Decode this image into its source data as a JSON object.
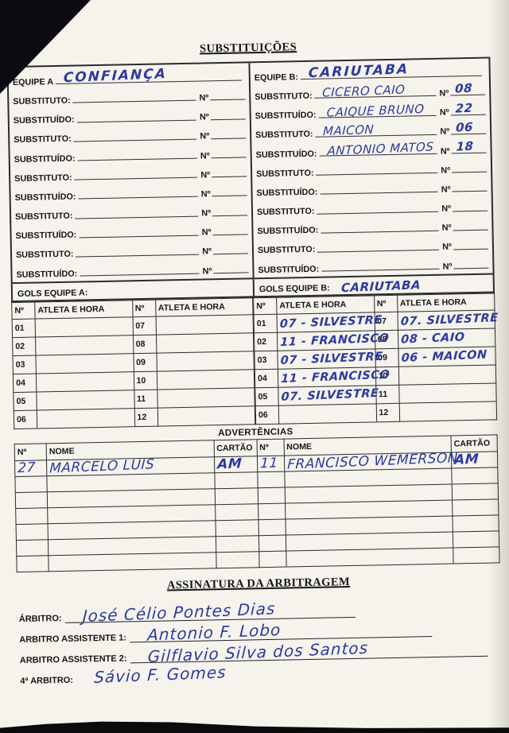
{
  "labels": {
    "num": "Nº",
    "athlete": "ATLETA E HORA",
    "name": "NOME",
    "card": "CARTÃO"
  },
  "sections": {
    "substitutions_title": "SUBSTITUIÇÕES",
    "warnings_title": "ADVERTÊNCIAS",
    "signature_title": "ASSINATURA DA ARBITRAGEM"
  },
  "subs": {
    "team_a": {
      "label": "EQUIPE A",
      "value": "CONFIANÇA"
    },
    "team_b": {
      "label": "EQUIPE B:",
      "value": "CARIUTABA"
    },
    "rows_a": [
      {
        "label": "SUBSTITUTO:",
        "name": "",
        "num": ""
      },
      {
        "label": "SUBSTITUÍDO:",
        "name": "",
        "num": ""
      },
      {
        "label": "SUBSTITUTO:",
        "name": "",
        "num": ""
      },
      {
        "label": "SUBSTITUÍDO:",
        "name": "",
        "num": ""
      },
      {
        "label": "SUBSTITUTO:",
        "name": "",
        "num": ""
      },
      {
        "label": "SUBSTITUÍDO:",
        "name": "",
        "num": ""
      },
      {
        "label": "SUBSTITUTO:",
        "name": "",
        "num": ""
      },
      {
        "label": "SUBSTITUÍDO:",
        "name": "",
        "num": ""
      },
      {
        "label": "SUBSTITUTO:",
        "name": "",
        "num": ""
      },
      {
        "label": "SUBSTITUÍDO:",
        "name": "",
        "num": ""
      }
    ],
    "rows_b": [
      {
        "label": "SUBSTITUTO:",
        "name": "CICERO CAIO",
        "num": "08"
      },
      {
        "label": "SUBSTITUÍDO:",
        "name": "CAIQUE BRUNO",
        "num": "22"
      },
      {
        "label": "SUBSTITUTO:",
        "name": "MAICON",
        "num": "06"
      },
      {
        "label": "SUBSTITUÍDO:",
        "name": "ANTONIO MATOS",
        "num": "18"
      },
      {
        "label": "SUBSTITUTO:",
        "name": "",
        "num": ""
      },
      {
        "label": "SUBSTITUÍDO:",
        "name": "",
        "num": ""
      },
      {
        "label": "SUBSTITUTO:",
        "name": "",
        "num": ""
      },
      {
        "label": "SUBSTITUÍDO:",
        "name": "",
        "num": ""
      },
      {
        "label": "SUBSTITUTO:",
        "name": "",
        "num": ""
      },
      {
        "label": "SUBSTITUÍDO:",
        "name": "",
        "num": ""
      }
    ]
  },
  "goals": {
    "team_a_label": "GOLS EQUIPE A:",
    "team_a_value": "",
    "team_b_label": "GOLS EQUIPE B:",
    "team_b_value": "CARIUTABA",
    "rows_a": [
      {
        "n1": "01",
        "e1": "",
        "n2": "07",
        "e2": ""
      },
      {
        "n1": "02",
        "e1": "",
        "n2": "08",
        "e2": ""
      },
      {
        "n1": "03",
        "e1": "",
        "n2": "09",
        "e2": ""
      },
      {
        "n1": "04",
        "e1": "",
        "n2": "10",
        "e2": ""
      },
      {
        "n1": "05",
        "e1": "",
        "n2": "11",
        "e2": ""
      },
      {
        "n1": "06",
        "e1": "",
        "n2": "12",
        "e2": ""
      }
    ],
    "rows_b": [
      {
        "n1": "01",
        "e1": "07 - SILVESTRE",
        "n2": "07",
        "e2": "07. SILVESTRE"
      },
      {
        "n1": "02",
        "e1": "11 - FRANCISCO",
        "n2": "08",
        "e2": "08 - CAIO"
      },
      {
        "n1": "03",
        "e1": "07 - SILVESTRE",
        "n2": "09",
        "e2": "06 - MAICON"
      },
      {
        "n1": "04",
        "e1": "11 - FRANCISCO",
        "n2": "10",
        "e2": ""
      },
      {
        "n1": "05",
        "e1": "07. SILVESTRE",
        "n2": "11",
        "e2": ""
      },
      {
        "n1": "06",
        "e1": "",
        "n2": "12",
        "e2": ""
      }
    ]
  },
  "warnings": {
    "rows": [
      {
        "n1": "27",
        "name1": "MARCELO LUIS",
        "c1": "AM",
        "n2": "11",
        "name2": "FRANCISCO WEMERSON",
        "c2": "AM"
      },
      {
        "n1": "",
        "name1": "",
        "c1": "",
        "n2": "",
        "name2": "",
        "c2": ""
      },
      {
        "n1": "",
        "name1": "",
        "c1": "",
        "n2": "",
        "name2": "",
        "c2": ""
      },
      {
        "n1": "",
        "name1": "",
        "c1": "",
        "n2": "",
        "name2": "",
        "c2": ""
      },
      {
        "n1": "",
        "name1": "",
        "c1": "",
        "n2": "",
        "name2": "",
        "c2": ""
      },
      {
        "n1": "",
        "name1": "",
        "c1": "",
        "n2": "",
        "name2": "",
        "c2": ""
      },
      {
        "n1": "",
        "name1": "",
        "c1": "",
        "n2": "",
        "name2": "",
        "c2": ""
      }
    ]
  },
  "signatures": {
    "rows": [
      {
        "label": "ÁRBITRO:",
        "value": "José Célio Pontes Dias"
      },
      {
        "label": "ARBITRO ASSISTENTE 1:",
        "value": "Antonio F. Lobo"
      },
      {
        "label": "ARBITRO ASSISTENTE 2:",
        "value": "Gilflavio Silva dos Santos"
      },
      {
        "label": "4ª ARBITRO:",
        "value": "Sávio F. Gomes"
      }
    ]
  },
  "colors": {
    "ink": "#2c3a9f",
    "paper": "#f5f3ec",
    "line": "#2b2b2b"
  }
}
